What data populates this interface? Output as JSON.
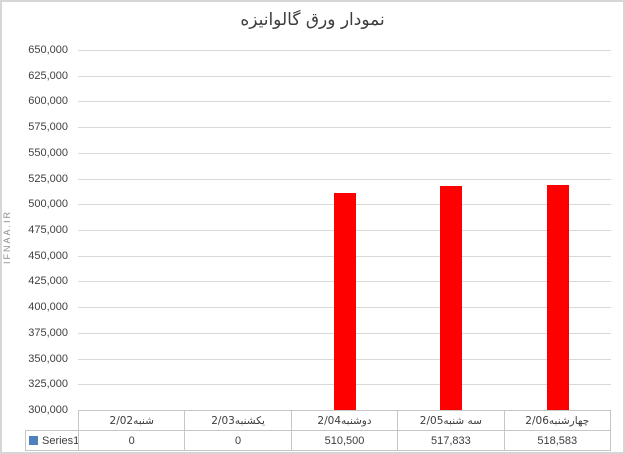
{
  "watermark": "IFNAA.IR",
  "chart_data": {
    "type": "bar",
    "title": "نمودار ورق گالوانیزه",
    "categories": [
      "شنبه2/02",
      "یکشنبه2/03",
      "دوشنبه2/04",
      "سه شنبه2/05",
      "چهارشنبه2/06"
    ],
    "series": [
      {
        "name": "Series1",
        "values": [
          0,
          0,
          510500,
          517833,
          518583
        ]
      }
    ],
    "ylim": [
      300000,
      650000
    ],
    "ytick_step": 25000,
    "grid": true,
    "legend_position": "bottom-left-data-table",
    "has_data_table": true,
    "bar_color": "#ff0000",
    "legend_marker_color": "#4f81bd",
    "gridline_color": "#d9d9d9"
  }
}
